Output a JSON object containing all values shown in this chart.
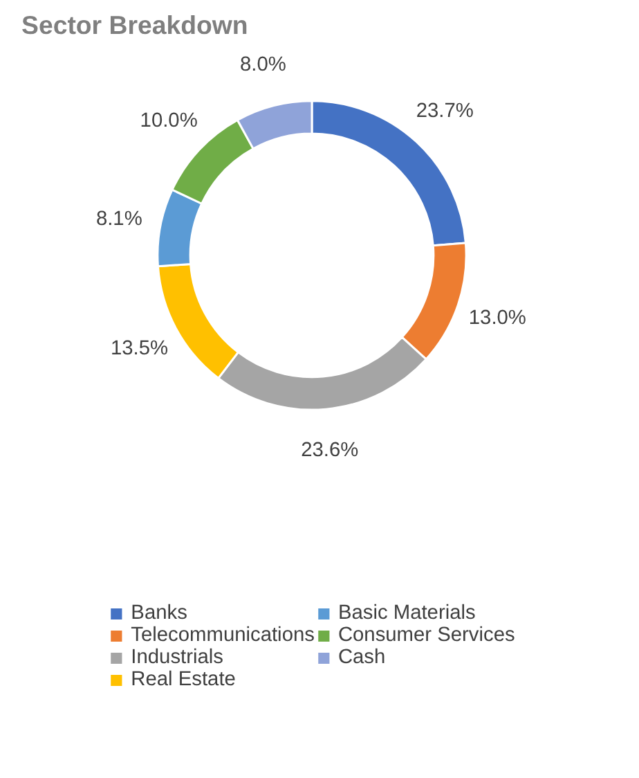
{
  "chart_data": {
    "type": "donut",
    "title": "Sector Breakdown",
    "categories": [
      "Banks",
      "Telecommunications",
      "Industrials",
      "Real Estate",
      "Basic Materials",
      "Consumer Services",
      "Cash"
    ],
    "values": [
      23.7,
      13.0,
      23.6,
      13.5,
      8.1,
      10.0,
      8.0
    ],
    "value_labels": [
      "23.7%",
      "13.0%",
      "23.6%",
      "13.5%",
      "8.1%",
      "10.0%",
      "8.0%"
    ],
    "colors": [
      "#4472c4",
      "#ed7d31",
      "#a5a5a5",
      "#ffc000",
      "#5b9bd5",
      "#70ad47",
      "#8fa3d9"
    ],
    "legend": "bottom"
  }
}
